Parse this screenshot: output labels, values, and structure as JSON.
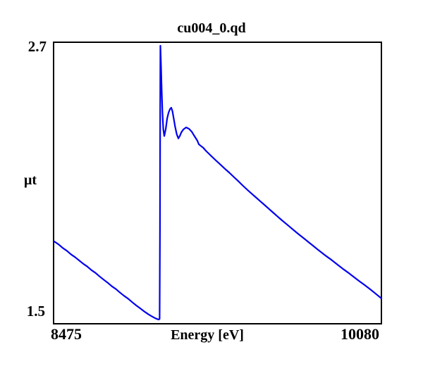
{
  "window": {
    "background": "#ffffff"
  },
  "chart_data": {
    "type": "line",
    "title": "cu004_0.qd",
    "xlabel": "Energy [eV]",
    "ylabel": "μt",
    "xlim": [
      8475,
      10080
    ],
    "ylim": [
      1.5,
      2.7
    ],
    "x_tick_labels": [
      "8475",
      "10080"
    ],
    "y_tick_labels": [
      "2.7",
      "1.5"
    ],
    "grid": false,
    "legend": false,
    "line_color": "#0000ee",
    "frame_color": "#000000",
    "description": "X-ray absorption spectrum (Cu K-edge XAFS scan): descending pre-edge, sharp edge jump with white-line peak near 9000 eV reaching ~2.69, EXAFS oscillations, then smooth decay to ~1.61 at 10080 eV",
    "series": [
      {
        "name": "cu004_0.qd",
        "points": [
          [
            8478,
            1.851
          ],
          [
            8500,
            1.838
          ],
          [
            8520,
            1.823
          ],
          [
            8540,
            1.811
          ],
          [
            8560,
            1.796
          ],
          [
            8580,
            1.784
          ],
          [
            8600,
            1.77
          ],
          [
            8620,
            1.756
          ],
          [
            8640,
            1.744
          ],
          [
            8660,
            1.729
          ],
          [
            8680,
            1.717
          ],
          [
            8700,
            1.702
          ],
          [
            8720,
            1.688
          ],
          [
            8740,
            1.675
          ],
          [
            8760,
            1.66
          ],
          [
            8780,
            1.648
          ],
          [
            8800,
            1.633
          ],
          [
            8820,
            1.619
          ],
          [
            8840,
            1.607
          ],
          [
            8860,
            1.592
          ],
          [
            8880,
            1.578
          ],
          [
            8900,
            1.565
          ],
          [
            8920,
            1.552
          ],
          [
            8940,
            1.54
          ],
          [
            8955,
            1.532
          ],
          [
            8970,
            1.525
          ],
          [
            8982,
            1.52
          ],
          [
            8990,
            1.518
          ],
          [
            8994,
            1.521
          ],
          [
            8996,
            1.9
          ],
          [
            8997,
            2.4
          ],
          [
            8998,
            2.685
          ],
          [
            9001,
            2.6
          ],
          [
            9004,
            2.5
          ],
          [
            9008,
            2.4
          ],
          [
            9012,
            2.33
          ],
          [
            9017,
            2.3
          ],
          [
            9024,
            2.33
          ],
          [
            9031,
            2.375
          ],
          [
            9038,
            2.4
          ],
          [
            9045,
            2.415
          ],
          [
            9051,
            2.421
          ],
          [
            9057,
            2.406
          ],
          [
            9063,
            2.375
          ],
          [
            9070,
            2.34
          ],
          [
            9078,
            2.308
          ],
          [
            9086,
            2.29
          ],
          [
            9093,
            2.3
          ],
          [
            9100,
            2.315
          ],
          [
            9110,
            2.328
          ],
          [
            9124,
            2.337
          ],
          [
            9138,
            2.331
          ],
          [
            9152,
            2.318
          ],
          [
            9166,
            2.298
          ],
          [
            9179,
            2.28
          ],
          [
            9186,
            2.265
          ],
          [
            9196,
            2.258
          ],
          [
            9208,
            2.25
          ],
          [
            9220,
            2.238
          ],
          [
            9248,
            2.214
          ],
          [
            9270,
            2.196
          ],
          [
            9290,
            2.18
          ],
          [
            9312,
            2.162
          ],
          [
            9334,
            2.145
          ],
          [
            9356,
            2.127
          ],
          [
            9377,
            2.11
          ],
          [
            9399,
            2.091
          ],
          [
            9421,
            2.073
          ],
          [
            9443,
            2.056
          ],
          [
            9464,
            2.04
          ],
          [
            9486,
            2.023
          ],
          [
            9507,
            2.007
          ],
          [
            9529,
            1.99
          ],
          [
            9550,
            1.974
          ],
          [
            9572,
            1.957
          ],
          [
            9593,
            1.941
          ],
          [
            9615,
            1.925
          ],
          [
            9637,
            1.909
          ],
          [
            9659,
            1.893
          ],
          [
            9680,
            1.878
          ],
          [
            9702,
            1.863
          ],
          [
            9723,
            1.848
          ],
          [
            9745,
            1.833
          ],
          [
            9766,
            1.818
          ],
          [
            9788,
            1.803
          ],
          [
            9809,
            1.789
          ],
          [
            9831,
            1.775
          ],
          [
            9852,
            1.761
          ],
          [
            9874,
            1.746
          ],
          [
            9895,
            1.732
          ],
          [
            9917,
            1.718
          ],
          [
            9938,
            1.704
          ],
          [
            9956,
            1.692
          ],
          [
            9973,
            1.681
          ],
          [
            9990,
            1.67
          ],
          [
            10007,
            1.659
          ],
          [
            10026,
            1.646
          ],
          [
            10045,
            1.633
          ],
          [
            10062,
            1.621
          ],
          [
            10080,
            1.608
          ]
        ]
      }
    ]
  }
}
